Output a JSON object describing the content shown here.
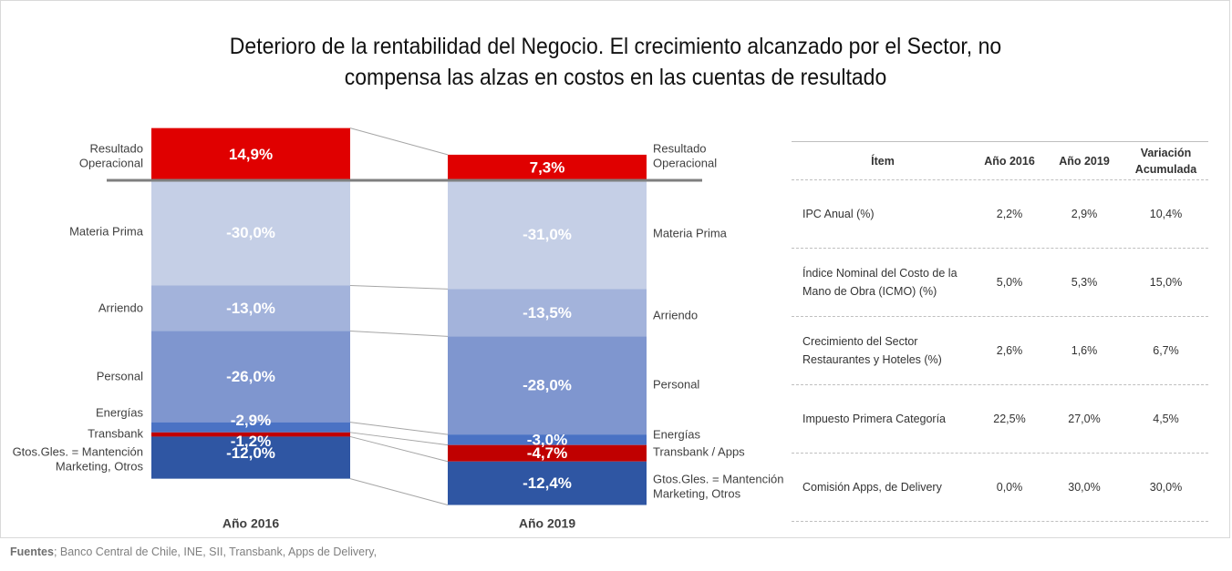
{
  "title_line1": "Deterioro de la rentabilidad del Negocio. El crecimiento alcanzado por el Sector, no",
  "title_line2": "compensa las alzas en costos en las cuentas de resultado",
  "chart_data": {
    "type": "bar",
    "stacked": true,
    "categories": [
      "Año 2016",
      "Año 2019"
    ],
    "series": [
      {
        "labels": [
          "Resultado\nOperacional",
          "Resultado\nOperacional"
        ],
        "values": [
          14.9,
          7.3
        ],
        "value_labels": [
          "14,9%",
          "7,3%"
        ],
        "color": "#e00000"
      },
      {
        "labels": [
          "Materia Prima",
          "Materia Prima"
        ],
        "values": [
          -30.0,
          -31.0
        ],
        "value_labels": [
          "-30,0%",
          "-31,0%"
        ],
        "color": "#c5cfe6"
      },
      {
        "labels": [
          "Arriendo",
          "Arriendo"
        ],
        "values": [
          -13.0,
          -13.5
        ],
        "value_labels": [
          "-13,0%",
          "-13,5%"
        ],
        "color": "#a3b3db"
      },
      {
        "labels": [
          "Personal",
          "Personal"
        ],
        "values": [
          -26.0,
          -28.0
        ],
        "value_labels": [
          "-26,0%",
          "-28,0%"
        ],
        "color": "#7f96cf"
      },
      {
        "labels": [
          "Energías",
          "Energías"
        ],
        "values": [
          -2.9,
          -3.0
        ],
        "value_labels": [
          "-2,9%",
          "-3,0%"
        ],
        "color": "#4a72c4"
      },
      {
        "labels": [
          "Transbank",
          "Transbank  / Apps"
        ],
        "values": [
          -1.2,
          -4.7
        ],
        "value_labels": [
          "-1,2%",
          "-4,7%"
        ],
        "color": "#c00000"
      },
      {
        "labels": [
          "Gtos.Gles. = Mantención\nMarketing, Otros",
          "Gtos.Gles. = Mantención\nMarketing, Otros"
        ],
        "values": [
          -12.0,
          -12.4
        ],
        "value_labels": [
          "-12,0%",
          "-12,4%"
        ],
        "color": "#2f56a3"
      }
    ]
  },
  "table": {
    "headers": [
      "Ítem",
      "Año 2016",
      "Año 2019",
      "Variación Acumulada"
    ],
    "rows": [
      [
        "IPC Anual (%)",
        "2,2%",
        "2,9%",
        "10,4%"
      ],
      [
        "Índice Nominal del Costo de la Mano de Obra (ICMO) (%)",
        "5,0%",
        "5,3%",
        "15,0%"
      ],
      [
        "Crecimiento del Sector Restaurantes y Hoteles (%)",
        "2,6%",
        "1,6%",
        "6,7%"
      ],
      [
        "Impuesto Primera Categoría",
        "22,5%",
        "27,0%",
        "4,5%"
      ],
      [
        "Comisión Apps, de Delivery",
        "0,0%",
        "30,0%",
        "30,0%"
      ]
    ]
  },
  "footer": {
    "bold": "Fuentes",
    "text": "; Banco Central de Chile, INE, SII, Transbank, Apps de Delivery,"
  }
}
